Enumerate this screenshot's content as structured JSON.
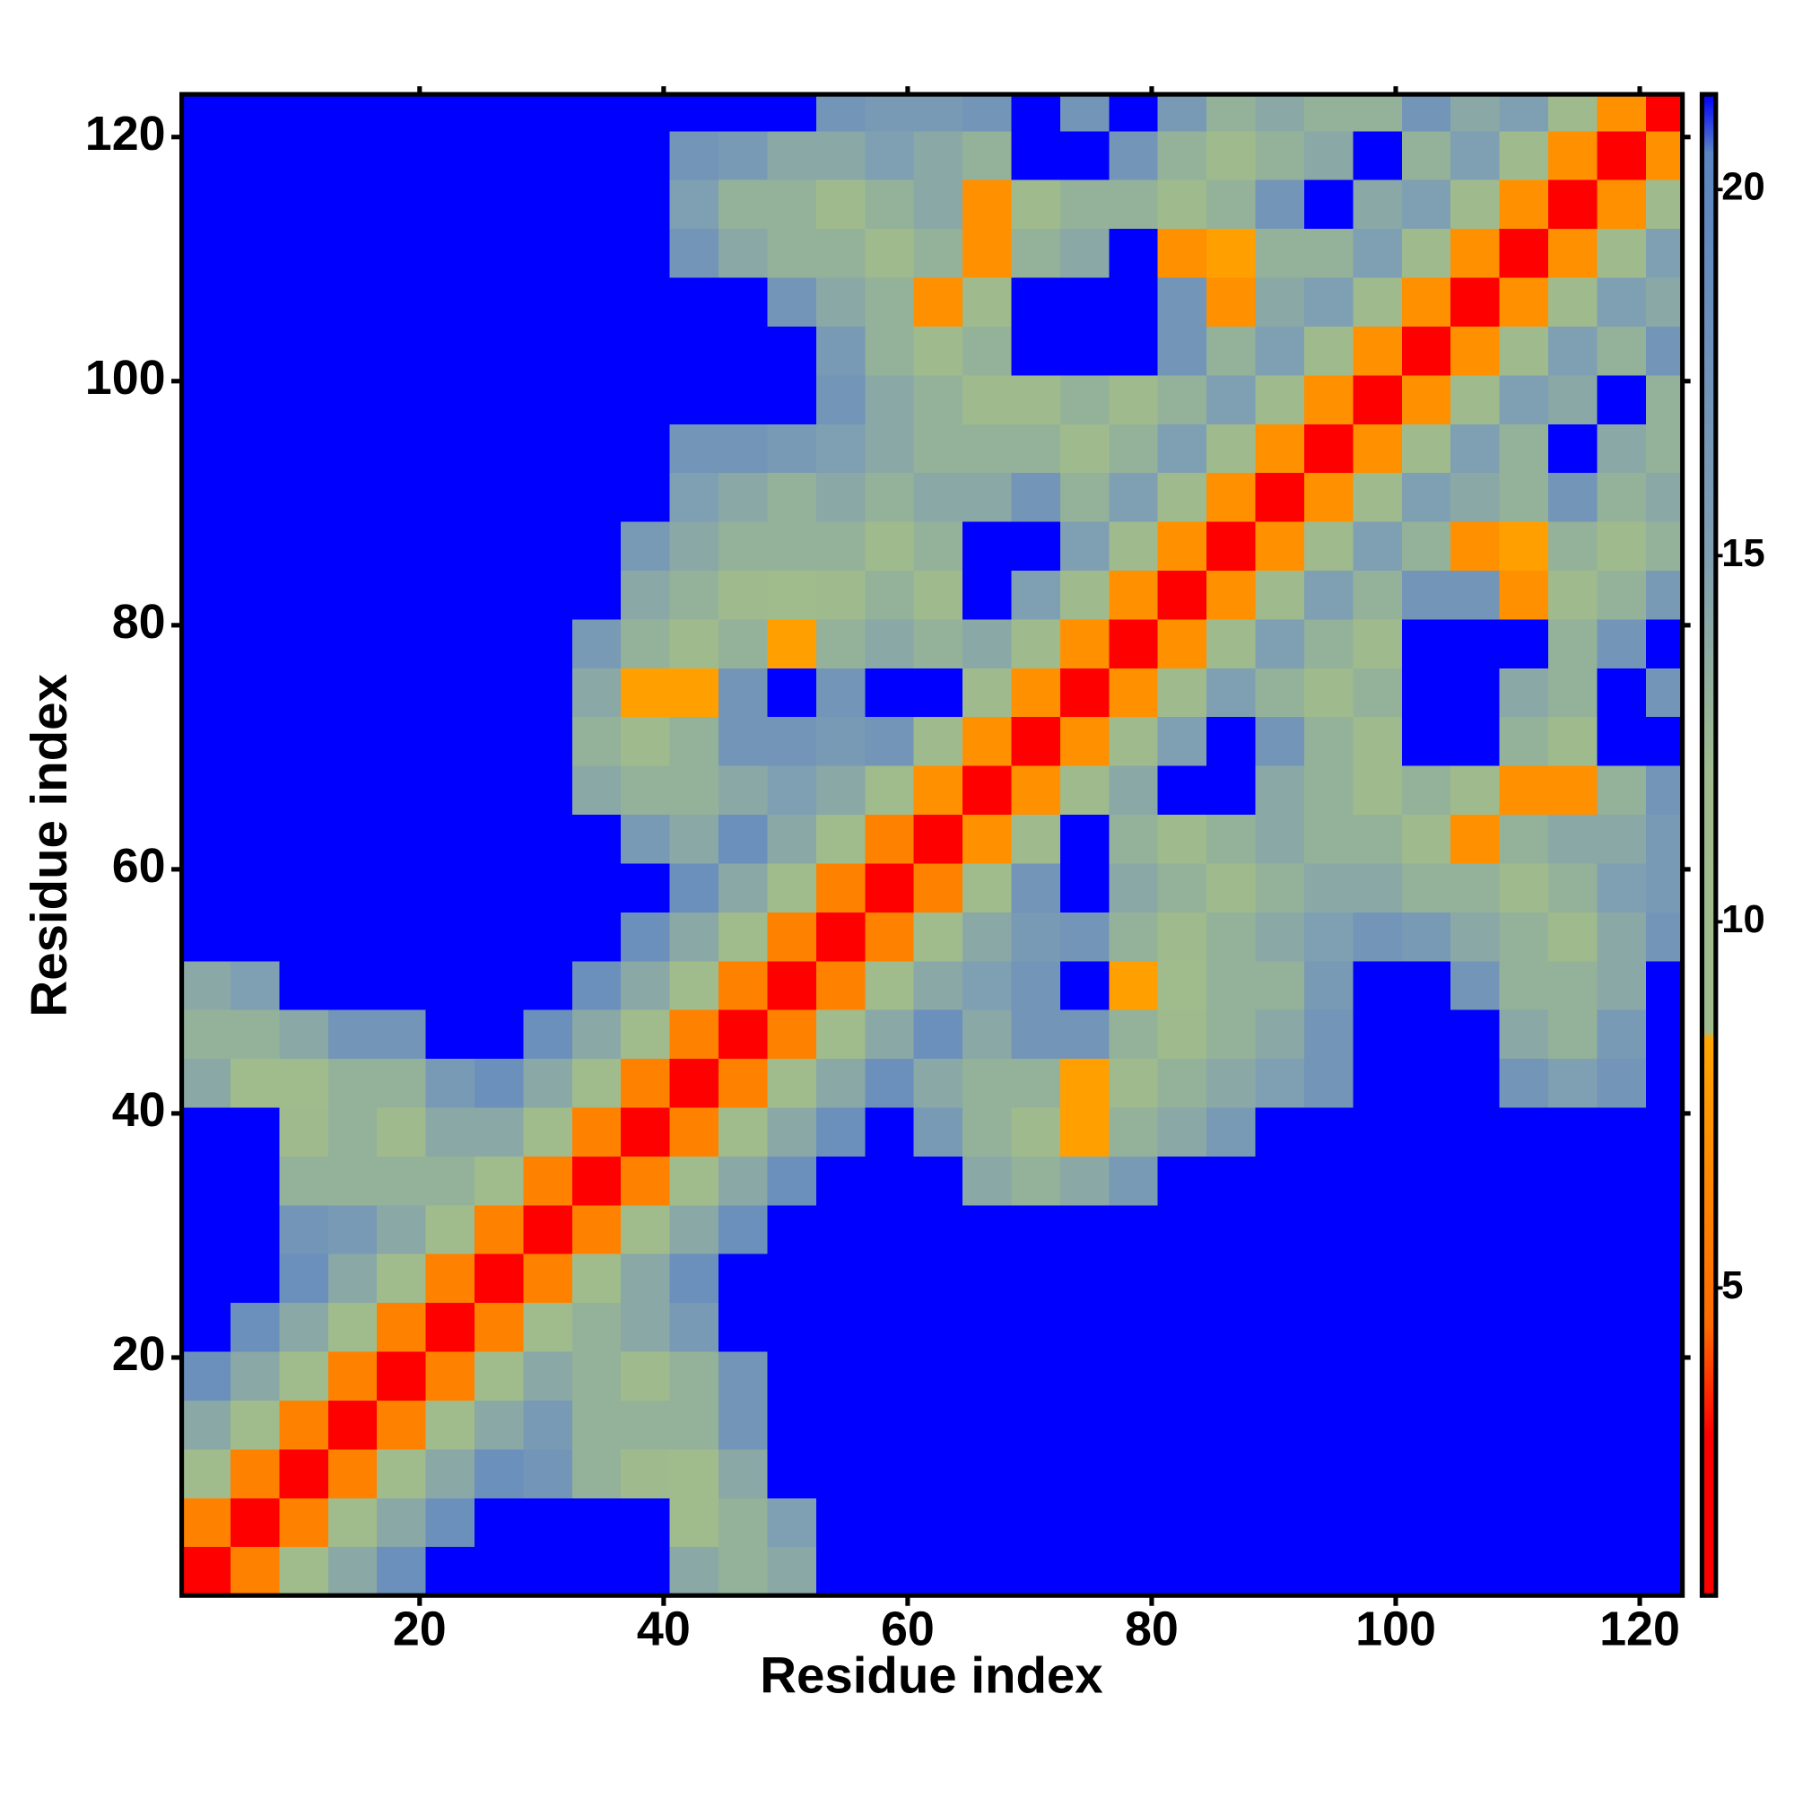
{
  "chart_data": {
    "type": "heatmap",
    "x_label": "Residue index",
    "y_label": "Residue index",
    "xlim": [
      0.5,
      123.5
    ],
    "ylim": [
      0.5,
      123.5
    ],
    "xticks": [
      20,
      40,
      60,
      80,
      100,
      120
    ],
    "yticks": [
      20,
      40,
      60,
      80,
      100,
      120
    ],
    "xbins": [
      0.5,
      4.5,
      8.5,
      12.5,
      16.5,
      20.5,
      24.5,
      28.5,
      32.5,
      36.5,
      40.5,
      44.5,
      48.5,
      52.5,
      56.5,
      60.5,
      64.5,
      68.5,
      72.5,
      76.5,
      80.5,
      84.5,
      88.5,
      92.5,
      96.5,
      100.5,
      104.5,
      108.5,
      112.5,
      116.5,
      120.5,
      123.5
    ],
    "ybins": [
      0.5,
      4.5,
      8.5,
      12.5,
      16.5,
      20.5,
      24.5,
      28.5,
      32.5,
      36.5,
      40.5,
      44.5,
      48.5,
      52.5,
      56.5,
      60.5,
      64.5,
      68.5,
      72.5,
      76.5,
      80.5,
      84.5,
      88.5,
      92.5,
      96.5,
      100.5,
      104.5,
      108.5,
      112.5,
      116.5,
      120.5,
      123.5
    ],
    "zlim": [
      0.8,
      21.3
    ],
    "zticks": [
      5,
      10,
      15,
      20
    ],
    "colorscale": [
      {
        "value": 0.8,
        "color": "#ff0000"
      },
      {
        "value": 3.0,
        "color": "#ff0000"
      },
      {
        "value": 4.5,
        "color": "#ff6a00"
      },
      {
        "value": 8.4,
        "color": "#ffa500"
      },
      {
        "value": 8.5,
        "color": "#a0bc8c"
      },
      {
        "value": 12,
        "color": "#9fbb8d"
      },
      {
        "value": 15,
        "color": "#7f9fb2"
      },
      {
        "value": 20.5,
        "color": "#5b84c2"
      },
      {
        "value": 21.3,
        "color": "#0000ff"
      }
    ],
    "values": [
      [
        2,
        6,
        10,
        14,
        18,
        25,
        25,
        25,
        25,
        25,
        14,
        13,
        14,
        25,
        25,
        25,
        25,
        25,
        25,
        25,
        25,
        25,
        25,
        25,
        25,
        25,
        25,
        25,
        25,
        25,
        25
      ],
      [
        6,
        2,
        6,
        10,
        14,
        18,
        25,
        25,
        25,
        25,
        9,
        13,
        15,
        25,
        25,
        25,
        25,
        25,
        25,
        25,
        25,
        25,
        25,
        25,
        25,
        25,
        25,
        25,
        25,
        25,
        25
      ],
      [
        10,
        6,
        2,
        6,
        10,
        14,
        18,
        17,
        13,
        12,
        9,
        14,
        25,
        25,
        25,
        25,
        25,
        25,
        25,
        25,
        25,
        25,
        25,
        25,
        25,
        25,
        25,
        25,
        25,
        25,
        25
      ],
      [
        14,
        10,
        6,
        2,
        6,
        10,
        14,
        16,
        13,
        13,
        13,
        17,
        25,
        25,
        25,
        25,
        25,
        25,
        25,
        25,
        25,
        25,
        25,
        25,
        25,
        25,
        25,
        25,
        25,
        25,
        25
      ],
      [
        18,
        14,
        10,
        6,
        2,
        6,
        10,
        14,
        13,
        12,
        13,
        17,
        25,
        25,
        25,
        25,
        25,
        25,
        25,
        25,
        25,
        25,
        25,
        25,
        25,
        25,
        25,
        25,
        25,
        25,
        25
      ],
      [
        25,
        18,
        14,
        10,
        6,
        2,
        6,
        10,
        13,
        14,
        16,
        25,
        25,
        25,
        25,
        25,
        25,
        25,
        25,
        25,
        25,
        25,
        25,
        25,
        25,
        25,
        25,
        25,
        25,
        25,
        25
      ],
      [
        25,
        25,
        18,
        14,
        10,
        6,
        2,
        6,
        10,
        14,
        18,
        25,
        25,
        25,
        25,
        25,
        25,
        25,
        25,
        25,
        25,
        25,
        25,
        25,
        25,
        25,
        25,
        25,
        25,
        25,
        25
      ],
      [
        25,
        25,
        17,
        16,
        14,
        10,
        6,
        2,
        6,
        10,
        14,
        18,
        25,
        25,
        25,
        25,
        25,
        25,
        25,
        25,
        25,
        25,
        25,
        25,
        25,
        25,
        25,
        25,
        25,
        25,
        25
      ],
      [
        25,
        25,
        13,
        13,
        13,
        13,
        10,
        6,
        2,
        6,
        10,
        14,
        18,
        25,
        25,
        25,
        14,
        13,
        14,
        16,
        25,
        25,
        25,
        25,
        25,
        25,
        25,
        25,
        25,
        25,
        25
      ],
      [
        25,
        25,
        12,
        13,
        12,
        14,
        14,
        10,
        6,
        2,
        6,
        10,
        14,
        18,
        25,
        16,
        13,
        12,
        8,
        13,
        14,
        16,
        25,
        25,
        25,
        25,
        25,
        25,
        25,
        25,
        25
      ],
      [
        14,
        9,
        9,
        13,
        13,
        16,
        18,
        14,
        10,
        6,
        2,
        6,
        10,
        14,
        18,
        14,
        13,
        13,
        8,
        12,
        13,
        14,
        15,
        17,
        25,
        25,
        25,
        17,
        15,
        17,
        25
      ],
      [
        13,
        13,
        14,
        17,
        17,
        25,
        25,
        18,
        14,
        10,
        6,
        2,
        6,
        10,
        14,
        18,
        14,
        17,
        17,
        13,
        12,
        13,
        14,
        17,
        25,
        25,
        25,
        14,
        13,
        16,
        25
      ],
      [
        14,
        15,
        25,
        25,
        25,
        25,
        25,
        25,
        18,
        14,
        10,
        6,
        2,
        6,
        10,
        14,
        15,
        17,
        25,
        8,
        9,
        13,
        13,
        16,
        25,
        25,
        17,
        13,
        13,
        14,
        25
      ],
      [
        25,
        25,
        25,
        25,
        25,
        25,
        25,
        25,
        25,
        18,
        14,
        10,
        6,
        2,
        6,
        10,
        14,
        16,
        17,
        13,
        12,
        13,
        14,
        15,
        17,
        16,
        14,
        13,
        12,
        14,
        17
      ],
      [
        25,
        25,
        25,
        25,
        25,
        25,
        25,
        25,
        25,
        25,
        18,
        14,
        10,
        6,
        2,
        6,
        10,
        17,
        25,
        14,
        13,
        12,
        13,
        14,
        14,
        13,
        13,
        12,
        13,
        15,
        16
      ],
      [
        25,
        25,
        25,
        25,
        25,
        25,
        25,
        25,
        25,
        16,
        14,
        18,
        14,
        10,
        6,
        2,
        7,
        12,
        25,
        13,
        12,
        13,
        14,
        13,
        13,
        12,
        7,
        13,
        14,
        14,
        16
      ],
      [
        25,
        25,
        25,
        25,
        25,
        25,
        25,
        25,
        14,
        13,
        13,
        14,
        15,
        14,
        10,
        7,
        2,
        7,
        12,
        14,
        25,
        25,
        14,
        13,
        12,
        13,
        12,
        7,
        7,
        13,
        17
      ],
      [
        25,
        25,
        25,
        25,
        25,
        25,
        25,
        25,
        13,
        12,
        13,
        17,
        17,
        16,
        17,
        12,
        7,
        2,
        7,
        12,
        15,
        25,
        17,
        13,
        12,
        25,
        25,
        13,
        12,
        25,
        25
      ],
      [
        25,
        25,
        25,
        25,
        25,
        25,
        25,
        25,
        14,
        8,
        8,
        17,
        25,
        17,
        25,
        25,
        12,
        7,
        2,
        7,
        12,
        15,
        13,
        12,
        13,
        25,
        25,
        14,
        13,
        25,
        17
      ],
      [
        25,
        25,
        25,
        25,
        25,
        25,
        25,
        25,
        16,
        13,
        12,
        13,
        8,
        13,
        14,
        13,
        14,
        12,
        7,
        2,
        7,
        12,
        15,
        13,
        12,
        25,
        25,
        25,
        13,
        17,
        25
      ],
      [
        25,
        25,
        25,
        25,
        25,
        25,
        25,
        25,
        25,
        14,
        13,
        12,
        9,
        12,
        13,
        12,
        25,
        15,
        12,
        7,
        2,
        7,
        12,
        15,
        13,
        17,
        17,
        7,
        12,
        13,
        16
      ],
      [
        25,
        25,
        25,
        25,
        25,
        25,
        25,
        25,
        25,
        16,
        14,
        13,
        13,
        13,
        12,
        13,
        25,
        25,
        15,
        12,
        7,
        2,
        7,
        12,
        15,
        13,
        7,
        8,
        13,
        12,
        13
      ],
      [
        25,
        25,
        25,
        25,
        25,
        25,
        25,
        25,
        25,
        25,
        15,
        14,
        13,
        14,
        13,
        14,
        14,
        17,
        13,
        15,
        12,
        7,
        2,
        7,
        12,
        15,
        14,
        13,
        17,
        13,
        14
      ],
      [
        25,
        25,
        25,
        25,
        25,
        25,
        25,
        25,
        25,
        25,
        17,
        17,
        16,
        15,
        14,
        13,
        13,
        13,
        12,
        13,
        15,
        12,
        7,
        2,
        7,
        12,
        15,
        13,
        25,
        14,
        13
      ],
      [
        25,
        25,
        25,
        25,
        25,
        25,
        25,
        25,
        25,
        25,
        25,
        25,
        25,
        17,
        14,
        13,
        12,
        12,
        13,
        12,
        13,
        15,
        12,
        7,
        2,
        7,
        12,
        15,
        14,
        25,
        13
      ],
      [
        25,
        25,
        25,
        25,
        25,
        25,
        25,
        25,
        25,
        25,
        25,
        25,
        25,
        16,
        13,
        12,
        13,
        25,
        25,
        25,
        17,
        13,
        15,
        12,
        7,
        2,
        7,
        12,
        15,
        13,
        17
      ],
      [
        25,
        25,
        25,
        25,
        25,
        25,
        25,
        25,
        25,
        25,
        25,
        25,
        17,
        14,
        13,
        7,
        12,
        25,
        25,
        25,
        17,
        7,
        14,
        15,
        12,
        7,
        2,
        7,
        12,
        15,
        14
      ],
      [
        25,
        25,
        25,
        25,
        25,
        25,
        25,
        25,
        25,
        25,
        17,
        14,
        13,
        13,
        12,
        13,
        7,
        13,
        14,
        25,
        7,
        8,
        13,
        13,
        15,
        12,
        7,
        2,
        7,
        12,
        15
      ],
      [
        25,
        25,
        25,
        25,
        25,
        25,
        25,
        25,
        25,
        25,
        15,
        13,
        13,
        12,
        13,
        14,
        7,
        12,
        13,
        13,
        12,
        13,
        17,
        25,
        14,
        15,
        12,
        7,
        2,
        7,
        12
      ],
      [
        25,
        25,
        25,
        25,
        25,
        25,
        25,
        25,
        25,
        25,
        17,
        16,
        14,
        14,
        15,
        14,
        13,
        25,
        25,
        17,
        13,
        12,
        13,
        14,
        25,
        13,
        15,
        12,
        7,
        2,
        7
      ],
      [
        25,
        25,
        25,
        25,
        25,
        25,
        25,
        25,
        25,
        25,
        25,
        25,
        25,
        17,
        16,
        16,
        17,
        25,
        17,
        25,
        16,
        13,
        14,
        13,
        13,
        17,
        14,
        15,
        12,
        7,
        2
      ]
    ]
  }
}
